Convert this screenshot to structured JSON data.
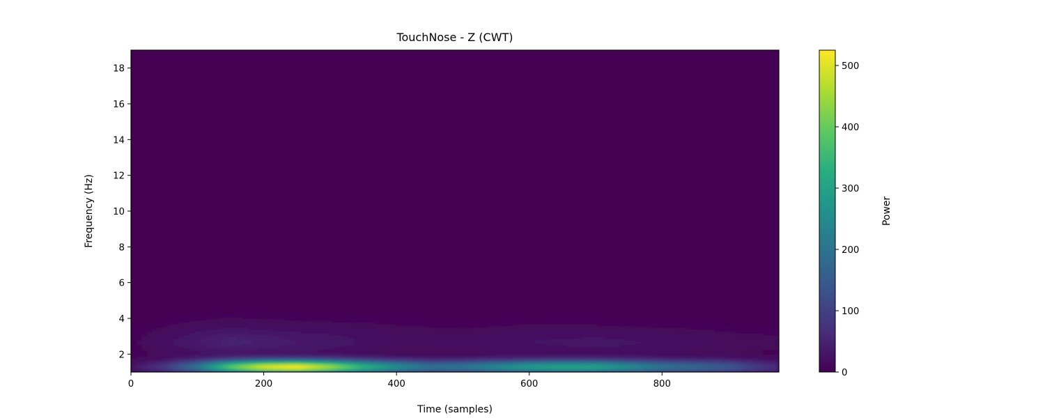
{
  "chart_data": {
    "type": "heatmap",
    "title": "TouchNose - Z (CWT)",
    "xlabel": "Time (samples)",
    "ylabel": "Frequency (Hz)",
    "xlim": [
      0,
      976
    ],
    "ylim": [
      1,
      19
    ],
    "x_ticks": [
      0,
      200,
      400,
      600,
      800
    ],
    "y_ticks": [
      2,
      4,
      6,
      8,
      10,
      12,
      14,
      16,
      18
    ],
    "colormap": "viridis",
    "colorbar": {
      "label": "Power",
      "range": [
        0,
        525
      ],
      "ticks": [
        0,
        100,
        200,
        300,
        400,
        500
      ]
    },
    "grid": false,
    "bands": [
      {
        "freq_center": 1.3,
        "freq_halfwidth": 0.28,
        "envelope": [
          [
            0,
            25
          ],
          [
            50,
            80
          ],
          [
            100,
            200
          ],
          [
            150,
            380
          ],
          [
            200,
            490
          ],
          [
            250,
            520
          ],
          [
            300,
            440
          ],
          [
            350,
            330
          ],
          [
            400,
            250
          ],
          [
            450,
            190
          ],
          [
            500,
            200
          ],
          [
            550,
            240
          ],
          [
            600,
            280
          ],
          [
            650,
            295
          ],
          [
            700,
            290
          ],
          [
            750,
            245
          ],
          [
            800,
            195
          ],
          [
            850,
            170
          ],
          [
            900,
            140
          ],
          [
            950,
            80
          ],
          [
            976,
            60
          ]
        ]
      },
      {
        "freq_center": 2.6,
        "freq_halfwidth": 0.5,
        "envelope": [
          [
            0,
            5
          ],
          [
            100,
            30
          ],
          [
            150,
            40
          ],
          [
            200,
            35
          ],
          [
            300,
            25
          ],
          [
            400,
            10
          ],
          [
            500,
            15
          ],
          [
            600,
            20
          ],
          [
            700,
            25
          ],
          [
            800,
            20
          ],
          [
            900,
            12
          ],
          [
            976,
            10
          ]
        ]
      },
      {
        "freq_center": 3.3,
        "freq_halfwidth": 0.6,
        "envelope": [
          [
            0,
            0
          ],
          [
            100,
            12
          ],
          [
            150,
            18
          ],
          [
            250,
            12
          ],
          [
            350,
            10
          ],
          [
            500,
            5
          ],
          [
            600,
            8
          ],
          [
            800,
            5
          ],
          [
            976,
            2
          ]
        ]
      }
    ]
  }
}
